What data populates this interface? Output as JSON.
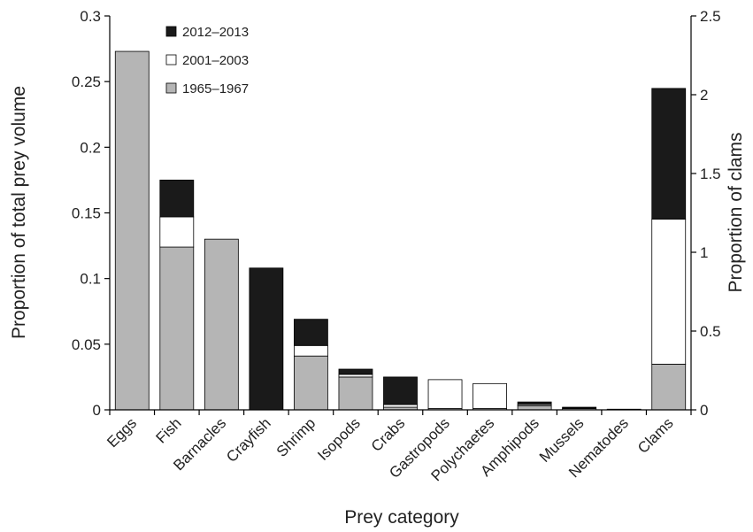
{
  "chart_data": {
    "type": "bar",
    "stacked": true,
    "xlabel": "Prey category",
    "ylabel": "Proportion of total prey volume",
    "y2label": "Proportion of clams",
    "ylim": [
      0,
      0.3
    ],
    "y2lim": [
      0,
      2.5
    ],
    "yticks": [
      "0",
      "0.05",
      "0.1",
      "0.15",
      "0.2",
      "0.25",
      "0.3"
    ],
    "y2ticks": [
      "0",
      "0.5",
      "1",
      "1.5",
      "2",
      "2.5"
    ],
    "categories": [
      "Eggs",
      "Fish",
      "Barnacles",
      "Crayfish",
      "Shrimp",
      "Isopods",
      "Crabs",
      "Gastropods",
      "Polychaetes",
      "Amphipods",
      "Mussels",
      "Nematodes",
      "Clams"
    ],
    "secondary_axis_category": "Clams",
    "series": [
      {
        "name": "1965–1967",
        "color": "#b5b5b5",
        "values": [
          0.273,
          0.124,
          0.13,
          0.0,
          0.041,
          0.025,
          0.002,
          0.001,
          0.001,
          0.003,
          0.001,
          0.0,
          0.29
        ]
      },
      {
        "name": "2001–2003",
        "color": "#ffffff",
        "values": [
          0.0,
          0.023,
          0.0,
          0.0,
          0.008,
          0.002,
          0.002,
          0.022,
          0.019,
          0.001,
          0.0005,
          0.0,
          0.92
        ]
      },
      {
        "name": "2012–2013",
        "color": "#1a1a1a",
        "values": [
          0.0,
          0.028,
          0.0,
          0.108,
          0.02,
          0.004,
          0.021,
          0.0,
          0.0,
          0.002,
          0.0005,
          0.0005,
          0.83
        ]
      }
    ],
    "legend_order": [
      "2012–2013",
      "2001–2003",
      "1965–1967"
    ],
    "legend_position": "top-left"
  }
}
